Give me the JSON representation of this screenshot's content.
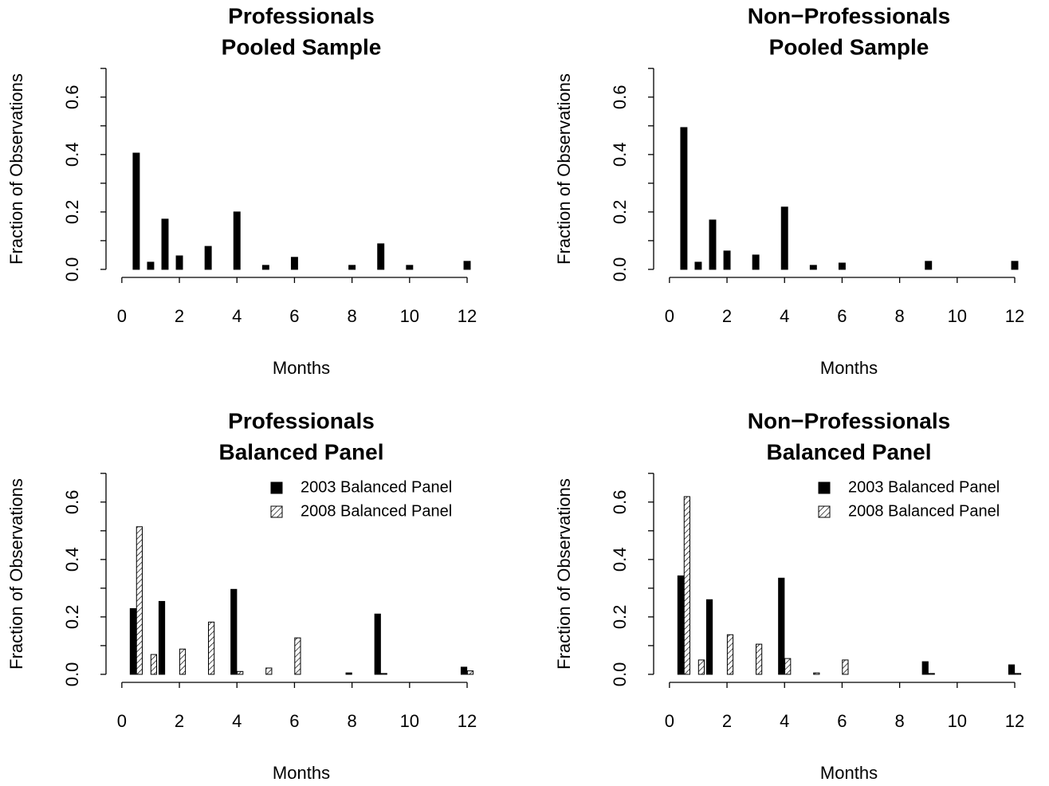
{
  "chart_data": [
    {
      "type": "bar",
      "title": [
        "Professionals",
        "Pooled Sample"
      ],
      "x_label": "Months",
      "y_label": "Fraction of Observations",
      "x": [
        0.5,
        1,
        1.5,
        2,
        3,
        4,
        5,
        6,
        8,
        9,
        10,
        12
      ],
      "values": [
        0.405,
        0.025,
        0.175,
        0.047,
        0.08,
        0.2,
        0.014,
        0.042,
        0.014,
        0.089,
        0.014,
        0.028
      ],
      "color": "#000000",
      "xlim": [
        -0.55,
        12.9
      ],
      "ylim": [
        -0.028,
        0.73
      ],
      "xticks": [
        0,
        2,
        4,
        6,
        8,
        10,
        12
      ],
      "yticks": [
        {
          "value": 0,
          "label": "0.0"
        },
        {
          "value": 0.2,
          "label": "0.2"
        },
        {
          "value": 0.4,
          "label": "0.4"
        },
        {
          "value": 0.6,
          "label": "0.6"
        }
      ],
      "yminor_ticks": [
        0.1,
        0.3,
        0.5,
        0.7
      ]
    },
    {
      "type": "bar",
      "title": [
        "Non−Professionals",
        "Pooled Sample"
      ],
      "x_label": "Months",
      "y_label": "Fraction of Observations",
      "x": [
        0.5,
        1,
        1.5,
        2,
        3,
        4,
        5,
        6,
        9,
        12
      ],
      "values": [
        0.494,
        0.025,
        0.172,
        0.064,
        0.05,
        0.217,
        0.014,
        0.022,
        0.028,
        0.028
      ],
      "color": "#000000",
      "xlim": [
        -0.55,
        12.9
      ],
      "ylim": [
        -0.028,
        0.73
      ],
      "xticks": [
        0,
        2,
        4,
        6,
        8,
        10,
        12
      ],
      "yticks": [
        {
          "value": 0,
          "label": "0.0"
        },
        {
          "value": 0.2,
          "label": "0.2"
        },
        {
          "value": 0.4,
          "label": "0.4"
        },
        {
          "value": 0.6,
          "label": "0.6"
        }
      ],
      "yminor_ticks": [
        0.1,
        0.3,
        0.5,
        0.7
      ]
    },
    {
      "type": "grouped_bar",
      "title": [
        "Professionals",
        "Balanced Panel"
      ],
      "x_label": "Months",
      "y_label": "Fraction of Observations",
      "x": [
        0.5,
        1,
        1.5,
        2,
        3,
        4,
        5,
        6,
        8,
        9,
        12
      ],
      "series": [
        {
          "name": "2003 Balanced Panel",
          "color": "#000000",
          "pattern": "solid",
          "values": [
            0.229,
            null,
            0.254,
            null,
            null,
            0.296,
            null,
            null,
            0.005,
            0.21,
            0.025
          ]
        },
        {
          "name": "2008 Balanced Panel",
          "color": "#000000",
          "pattern": "hatch",
          "values": [
            0.514,
            0.069,
            null,
            0.088,
            0.182,
            0.01,
            0.022,
            0.127,
            null,
            0.003,
            0.012
          ]
        }
      ],
      "legend": "topright",
      "xlim": [
        -0.55,
        12.9
      ],
      "ylim": [
        -0.028,
        0.73
      ],
      "xticks": [
        0,
        2,
        4,
        6,
        8,
        10,
        12
      ],
      "yticks": [
        {
          "value": 0,
          "label": "0.0"
        },
        {
          "value": 0.2,
          "label": "0.2"
        },
        {
          "value": 0.4,
          "label": "0.4"
        },
        {
          "value": 0.6,
          "label": "0.6"
        }
      ],
      "yminor_ticks": [
        0.1,
        0.3,
        0.5,
        0.7
      ]
    },
    {
      "type": "grouped_bar",
      "title": [
        "Non−Professionals",
        "Balanced Panel"
      ],
      "x_label": "Months",
      "y_label": "Fraction of Observations",
      "x": [
        0.5,
        1,
        1.5,
        2,
        3,
        4,
        5,
        6,
        9,
        12
      ],
      "series": [
        {
          "name": "2003 Balanced Panel",
          "color": "#000000",
          "pattern": "solid",
          "values": [
            0.343,
            null,
            0.26,
            null,
            null,
            0.335,
            null,
            null,
            0.044,
            0.033
          ]
        },
        {
          "name": "2008 Balanced Panel",
          "color": "#000000",
          "pattern": "hatch",
          "values": [
            0.619,
            0.05,
            null,
            0.138,
            0.105,
            0.055,
            0.005,
            0.05,
            0.003,
            0.003
          ]
        }
      ],
      "legend": "topright",
      "xlim": [
        -0.55,
        12.9
      ],
      "ylim": [
        -0.028,
        0.73
      ],
      "xticks": [
        0,
        2,
        4,
        6,
        8,
        10,
        12
      ],
      "yticks": [
        {
          "value": 0,
          "label": "0.0"
        },
        {
          "value": 0.2,
          "label": "0.2"
        },
        {
          "value": 0.4,
          "label": "0.4"
        },
        {
          "value": 0.6,
          "label": "0.6"
        }
      ],
      "yminor_ticks": [
        0.1,
        0.3,
        0.5,
        0.7
      ]
    }
  ]
}
